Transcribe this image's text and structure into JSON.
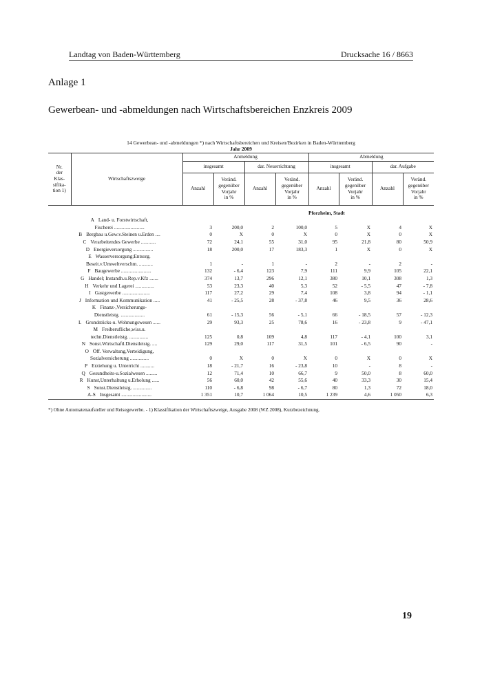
{
  "header": {
    "left": "Landtag von Baden-Württemberg",
    "right": "Drucksache 16 / 8663"
  },
  "annex": "Anlage 1",
  "title": "Gewerbean- und -abmeldungen nach Wirtschaftsbereichen Enzkreis 2009",
  "table": {
    "caption": "14 Gewerbean- und -abmeldungen *) nach Wirtschaftsbereichen und Kreisen/Bezirken in Baden-Württemberg",
    "year": "Jahr 2009",
    "col_nr": [
      "Nr.",
      "der",
      "Klas-",
      "sifika-",
      "tion 1)"
    ],
    "col_branch": "Wirtschaftszweige",
    "groups": [
      "Anmeldung",
      "Abmeldung"
    ],
    "subgroups": [
      "insgesamt",
      "dar. Neuerrichtung",
      "insgesamt",
      "dar. Aufgabe"
    ],
    "count_label": "Anzahl",
    "change_label": [
      "Veränd.",
      "gegenüber",
      "Vorjahr",
      "in %"
    ],
    "section": "Pforzheim, Stadt",
    "rows": [
      {
        "code": "A",
        "name": [
          "Land- u. Forstwirtschaft,",
          "Fischerei ........................"
        ],
        "values": [
          "3",
          "200,0",
          "2",
          "100,0",
          "5",
          "X",
          "4",
          "X"
        ]
      },
      {
        "code": "B",
        "name": [
          "Bergbau u.Gew.v.Steinen u.Erden ...."
        ],
        "values": [
          "0",
          "X",
          "0",
          "X",
          "0",
          "X",
          "0",
          "X"
        ]
      },
      {
        "code": "C",
        "name": [
          "Verarbeitendes Gewerbe ............"
        ],
        "values": [
          "72",
          "24,1",
          "55",
          "31,0",
          "95",
          "21,8",
          "80",
          "50,9"
        ]
      },
      {
        "code": "D",
        "name": [
          "Energieversorgung ................"
        ],
        "values": [
          "18",
          "200,0",
          "17",
          "183,3",
          "1",
          "X",
          "0",
          "X"
        ]
      },
      {
        "code": "E",
        "name": [
          "Wasserversorgung;Entsorg.",
          "Beseit.v.Umweltverschm. ..........."
        ],
        "values": [
          "1",
          "-",
          "1",
          "-",
          "2",
          "-",
          "2",
          "-"
        ]
      },
      {
        "code": "F",
        "name": [
          "Baugewerbe ........................"
        ],
        "values": [
          "132",
          "- 6,4",
          "123",
          "7,9",
          "111",
          "9,9",
          "105",
          "22,1"
        ]
      },
      {
        "code": "G",
        "name": [
          "Handel; Instandh.u.Rep.v.Kfz ......."
        ],
        "values": [
          "374",
          "13,7",
          "296",
          "12,1",
          "380",
          "10,1",
          "308",
          "1,3"
        ]
      },
      {
        "code": "H",
        "name": [
          "Verkehr und Lagerei ..............."
        ],
        "values": [
          "53",
          "23,3",
          "40",
          "5,3",
          "52",
          "- 5,5",
          "47",
          "- 7,8"
        ]
      },
      {
        "code": "I",
        "name": [
          "Gastgewerbe ......................"
        ],
        "values": [
          "117",
          "27,2",
          "29",
          "7,4",
          "108",
          "3,8",
          "94",
          "- 1,1"
        ]
      },
      {
        "code": "J",
        "name": [
          "Information und Kommunikation ....."
        ],
        "values": [
          "41",
          "- 25,5",
          "28",
          "- 37,8",
          "46",
          "9,5",
          "36",
          "28,6"
        ]
      },
      {
        "code": "K",
        "name": [
          "Finanz-,Versicherungs-",
          "Dienstleistg. ..................."
        ],
        "values": [
          "61",
          "- 15,3",
          "56",
          "- 5,1",
          "66",
          "- 18,5",
          "57",
          "- 12,3"
        ]
      },
      {
        "code": "L",
        "name": [
          "Grundstücks-u. Wohnungswesen ......"
        ],
        "values": [
          "29",
          "93,3",
          "25",
          "78,6",
          "16",
          "- 23,8",
          "9",
          "- 47,1"
        ]
      },
      {
        "code": "M",
        "name": [
          "Freiberufliche,wiss.u.",
          "techn.Dienstleistg. ..............."
        ],
        "values": [
          "125",
          "0,8",
          "109",
          "4,8",
          "117",
          "- 4,1",
          "100",
          "3,1"
        ]
      },
      {
        "code": "N",
        "name": [
          "Sonst.Wirtschaftl.Dienstleistg. ...."
        ],
        "values": [
          "129",
          "29,0",
          "117",
          "31,5",
          "101",
          "- 6,5",
          "90",
          "-"
        ]
      },
      {
        "code": "O",
        "name": [
          "Öff. Verwaltung,Verteidigung,",
          "Sozialversicherung ..............."
        ],
        "values": [
          "0",
          "X",
          "0",
          "X",
          "0",
          "X",
          "0",
          "X"
        ]
      },
      {
        "code": "P",
        "name": [
          "Erziehung u. Unterricht ..........."
        ],
        "values": [
          "18",
          "- 21,7",
          "16",
          "- 23,8",
          "10",
          "-",
          "8",
          "-"
        ]
      },
      {
        "code": "Q",
        "name": [
          "Gesundheits-u.Sozialwesen ........."
        ],
        "values": [
          "12",
          "71,4",
          "10",
          "66,7",
          "9",
          "50,0",
          "8",
          "60,0"
        ]
      },
      {
        "code": "R",
        "name": [
          "Kunst,Unterhaltung u.Erholung ......"
        ],
        "values": [
          "56",
          "60,0",
          "42",
          "55,6",
          "40",
          "33,3",
          "30",
          "15,4"
        ]
      },
      {
        "code": "S",
        "name": [
          "Sonst.Dienstleistg. ..............."
        ],
        "values": [
          "110",
          "- 6,8",
          "98",
          "- 6,7",
          "80",
          "1,3",
          "72",
          "18,0"
        ]
      },
      {
        "code": "A-S",
        "name": [
          "Insgesamt ........................"
        ],
        "values": [
          "1 351",
          "10,7",
          "1 064",
          "10,5",
          "1 239",
          "4,6",
          "1 050",
          "6,3"
        ]
      }
    ]
  },
  "footnote": "*) Ohne Automatenaufsteller und Reisegewerbe. - 1) Klassifikation der Wirtschaftszweige, Ausgabe 2008 (WZ 2008), Kurzbezeichnung.",
  "page_number": "19"
}
